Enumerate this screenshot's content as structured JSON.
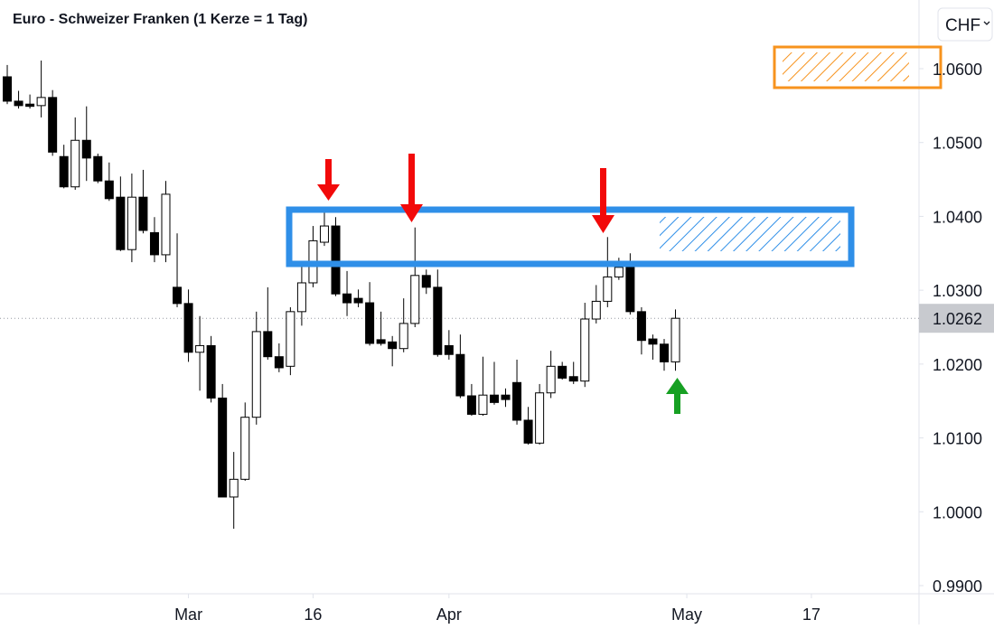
{
  "chart_data": {
    "type": "candlestick",
    "title": "Euro - Schweizer Franken (1 Kerze = 1 Tag)",
    "currency": "CHF",
    "x": [
      0,
      1,
      2,
      3,
      4,
      5,
      6,
      7,
      8,
      9,
      10,
      11,
      12,
      13,
      14,
      15,
      16,
      17,
      18,
      19,
      20,
      21,
      22,
      23,
      24,
      25,
      26,
      27,
      28,
      29,
      30,
      31,
      32,
      33,
      34,
      35,
      36,
      37,
      38,
      39,
      40,
      41,
      42,
      43,
      44,
      45,
      46,
      47,
      48,
      49,
      50,
      51,
      52,
      53,
      54,
      55,
      56,
      57,
      58,
      59
    ],
    "open": [
      1.0589,
      1.0556,
      1.0552,
      1.055,
      1.0561,
      1.0481,
      1.044,
      1.0503,
      1.0481,
      1.0448,
      1.0426,
      1.0355,
      1.0426,
      1.0378,
      1.0348,
      1.0304,
      1.0282,
      1.0216,
      1.0225,
      1.0154,
      1.002,
      1.0044,
      1.0128,
      1.0244,
      1.021,
      1.0197,
      1.0271,
      1.031,
      1.0365,
      1.0387,
      1.0295,
      1.0289,
      1.0283,
      1.0233,
      1.023,
      1.0221,
      1.0255,
      1.032,
      1.0304,
      1.0225,
      1.0213,
      1.0157,
      1.0132,
      1.0158,
      1.0158,
      1.0175,
      1.0124,
      1.0093,
      1.0161,
      1.0197,
      1.0183,
      1.0177,
      1.0261,
      1.0285,
      1.0318,
      1.0331,
      1.0271,
      1.0234,
      1.0227,
      1.0203
    ],
    "high": [
      1.0605,
      1.057,
      1.0565,
      1.0611,
      1.0571,
      1.0497,
      1.0534,
      1.0549,
      1.0485,
      1.0473,
      1.0454,
      1.0458,
      1.0463,
      1.0399,
      1.0448,
      1.0377,
      1.0301,
      1.0265,
      1.0238,
      1.0173,
      1.0081,
      1.0148,
      1.0271,
      1.0304,
      1.0228,
      1.0277,
      1.0338,
      1.0387,
      1.0405,
      1.0399,
      1.0326,
      1.0301,
      1.0311,
      1.0271,
      1.0238,
      1.0289,
      1.0385,
      1.0328,
      1.0328,
      1.0246,
      1.024,
      1.0173,
      1.021,
      1.0203,
      1.0167,
      1.0206,
      1.0142,
      1.0173,
      1.0218,
      1.0203,
      1.0203,
      1.0283,
      1.0307,
      1.0372,
      1.0344,
      1.035,
      1.0277,
      1.024,
      1.0234,
      1.0274
    ],
    "low": [
      1.0552,
      1.0546,
      1.0546,
      1.0534,
      1.0482,
      1.0438,
      1.0436,
      1.0448,
      1.0445,
      1.0421,
      1.0353,
      1.0338,
      1.0377,
      1.0338,
      1.0338,
      1.0277,
      1.0203,
      1.0164,
      1.0148,
      1.002,
      0.9977,
      1.0042,
      1.0118,
      1.0206,
      1.0189,
      1.0185,
      1.0252,
      1.0304,
      1.036,
      1.0292,
      1.0265,
      1.0277,
      1.0225,
      1.0225,
      1.0197,
      1.0216,
      1.025,
      1.0295,
      1.021,
      1.0206,
      1.0154,
      1.013,
      1.013,
      1.0145,
      1.0142,
      1.0118,
      1.0091,
      1.0091,
      1.0154,
      1.0179,
      1.0173,
      1.0169,
      1.0255,
      1.0277,
      1.0314,
      1.0267,
      1.0213,
      1.0206,
      1.0191,
      1.0191
    ],
    "close": [
      1.0556,
      1.055,
      1.0549,
      1.0561,
      1.0487,
      1.044,
      1.0503,
      1.0479,
      1.0448,
      1.0424,
      1.0355,
      1.0426,
      1.0381,
      1.0348,
      1.043,
      1.0282,
      1.0216,
      1.0225,
      1.0154,
      1.002,
      1.0044,
      1.0128,
      1.0244,
      1.021,
      1.0195,
      1.0271,
      1.031,
      1.0367,
      1.0387,
      1.0295,
      1.0283,
      1.0283,
      1.0228,
      1.0228,
      1.0221,
      1.0255,
      1.032,
      1.0304,
      1.0213,
      1.0213,
      1.0157,
      1.0132,
      1.0158,
      1.0148,
      1.0152,
      1.0124,
      1.0093,
      1.0161,
      1.0197,
      1.0181,
      1.0177,
      1.0261,
      1.0285,
      1.0318,
      1.0331,
      1.0271,
      1.0232,
      1.0227,
      1.0203,
      1.0262
    ],
    "up_color": "#ffffff",
    "down_color": "#000000",
    "xlim": [
      -0.64,
      80.5
    ],
    "xticks": [
      {
        "value": 16,
        "label": "Mar"
      },
      {
        "value": 27,
        "label": "16"
      },
      {
        "value": 39,
        "label": "Apr"
      },
      {
        "value": 60,
        "label": "May"
      },
      {
        "value": 71,
        "label": "17"
      }
    ],
    "ylim": [
      0.9889,
      1.0693
    ],
    "yticks": [
      {
        "value": 0.99,
        "label": "0.9900"
      },
      {
        "value": 1.0,
        "label": "1.0000"
      },
      {
        "value": 1.01,
        "label": "1.0100"
      },
      {
        "value": 1.02,
        "label": "1.0200"
      },
      {
        "value": 1.03,
        "label": "1.0300"
      },
      {
        "value": 1.04,
        "label": "1.0400"
      },
      {
        "value": 1.05,
        "label": "1.0500"
      },
      {
        "value": 1.06,
        "label": "1.0600"
      }
    ],
    "last_price": {
      "value": 1.0262,
      "label": "1.0262"
    }
  }
}
